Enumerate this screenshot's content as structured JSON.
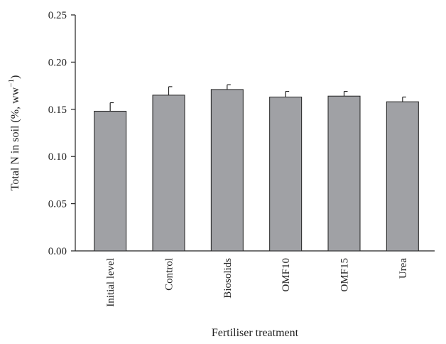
{
  "chart_data": {
    "type": "bar",
    "title": "",
    "xlabel": "Fertiliser treatment",
    "ylabel": "Total N in soil (%, ww",
    "ylabel_superscript": "−1",
    "ylabel_suffix": ")",
    "categories": [
      "Initial level",
      "Control",
      "Biosolids",
      "OMF10",
      "OMF15",
      "Urea"
    ],
    "values": [
      0.148,
      0.165,
      0.171,
      0.163,
      0.164,
      0.158
    ],
    "errors": [
      0.009,
      0.009,
      0.005,
      0.006,
      0.005,
      0.005
    ],
    "ylim": [
      0,
      0.25
    ],
    "yticks": [
      "0.00",
      "0.05",
      "0.10",
      "0.15",
      "0.20",
      "0.25"
    ],
    "grid": false,
    "bar_color": "#a0a1a5"
  }
}
